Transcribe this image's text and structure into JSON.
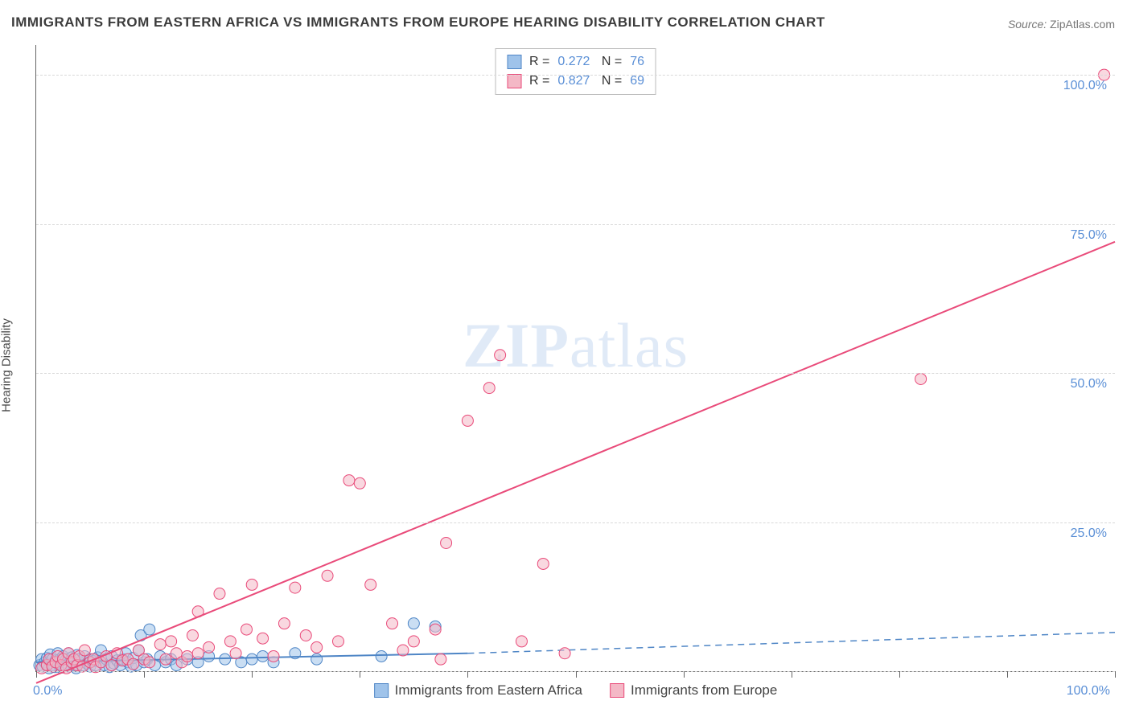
{
  "title": "IMMIGRANTS FROM EASTERN AFRICA VS IMMIGRANTS FROM EUROPE HEARING DISABILITY CORRELATION CHART",
  "source": {
    "label": "Source:",
    "value": "ZipAtlas.com"
  },
  "yaxis_label": "Hearing Disability",
  "watermark": {
    "bold": "ZIP",
    "rest": "atlas"
  },
  "chart": {
    "type": "scatter",
    "xlim": [
      0,
      100
    ],
    "ylim": [
      0,
      105
    ],
    "x_ticks": [
      0,
      10,
      20,
      30,
      40,
      50,
      60,
      70,
      80,
      90,
      100
    ],
    "y_gridlines": [
      0,
      25,
      50,
      75,
      100
    ],
    "y_tick_labels": [
      "25.0%",
      "50.0%",
      "75.0%",
      "100.0%"
    ],
    "y_tick_values": [
      25,
      50,
      75,
      100
    ],
    "x_origin_label": "0.0%",
    "x_end_label": "100.0%",
    "background_color": "#ffffff",
    "grid_color": "#d9d9d9",
    "axis_color": "#666666",
    "label_color": "#5a8fd6",
    "label_fontsize": 16,
    "title_fontsize": 17,
    "title_color": "#3c3c3c",
    "series": [
      {
        "name": "Immigrants from Eastern Africa",
        "color_fill": "#9fc3ea",
        "color_stroke": "#4f86c6",
        "fill_opacity": 0.55,
        "marker_radius": 7,
        "R": "0.272",
        "N": "76",
        "trend": {
          "solid_to_x": 40,
          "y_at_0": 1.5,
          "y_at_40": 3.0,
          "y_at_100": 6.5,
          "stroke_width": 2
        },
        "points": [
          [
            0.3,
            1.0
          ],
          [
            0.5,
            2.0
          ],
          [
            0.6,
            0.8
          ],
          [
            0.8,
            1.5
          ],
          [
            1.0,
            1.2
          ],
          [
            1.0,
            2.2
          ],
          [
            1.2,
            0.5
          ],
          [
            1.3,
            2.8
          ],
          [
            1.5,
            1.0
          ],
          [
            1.5,
            2.0
          ],
          [
            1.7,
            0.7
          ],
          [
            1.8,
            1.8
          ],
          [
            2.0,
            1.3
          ],
          [
            2.0,
            3.0
          ],
          [
            2.2,
            2.0
          ],
          [
            2.3,
            0.6
          ],
          [
            2.5,
            1.5
          ],
          [
            2.5,
            2.5
          ],
          [
            2.7,
            1.0
          ],
          [
            2.8,
            2.0
          ],
          [
            3.0,
            0.8
          ],
          [
            3.0,
            3.0
          ],
          [
            3.2,
            1.7
          ],
          [
            3.3,
            2.3
          ],
          [
            3.5,
            1.0
          ],
          [
            3.5,
            2.0
          ],
          [
            3.7,
            0.5
          ],
          [
            3.8,
            2.7
          ],
          [
            4.0,
            1.5
          ],
          [
            4.0,
            2.0
          ],
          [
            4.3,
            1.0
          ],
          [
            4.5,
            2.5
          ],
          [
            4.7,
            1.3
          ],
          [
            5.0,
            2.0
          ],
          [
            5.0,
            0.8
          ],
          [
            5.3,
            1.7
          ],
          [
            5.5,
            1.0
          ],
          [
            5.7,
            2.3
          ],
          [
            6.0,
            1.5
          ],
          [
            6.0,
            3.5
          ],
          [
            6.3,
            1.0
          ],
          [
            6.5,
            2.0
          ],
          [
            6.8,
            0.7
          ],
          [
            7.0,
            2.5
          ],
          [
            7.2,
            1.3
          ],
          [
            7.5,
            1.8
          ],
          [
            7.8,
            1.0
          ],
          [
            8.0,
            2.0
          ],
          [
            8.3,
            3.0
          ],
          [
            8.5,
            1.5
          ],
          [
            8.8,
            0.8
          ],
          [
            9.0,
            2.2
          ],
          [
            9.3,
            1.0
          ],
          [
            9.5,
            3.5
          ],
          [
            9.7,
            6.0
          ],
          [
            10.0,
            1.5
          ],
          [
            10.3,
            2.0
          ],
          [
            10.5,
            7.0
          ],
          [
            11.0,
            1.0
          ],
          [
            11.5,
            2.5
          ],
          [
            12.0,
            1.5
          ],
          [
            12.5,
            2.0
          ],
          [
            13.0,
            1.0
          ],
          [
            14.0,
            2.0
          ],
          [
            15.0,
            1.5
          ],
          [
            16.0,
            2.5
          ],
          [
            17.5,
            2.0
          ],
          [
            19.0,
            1.5
          ],
          [
            20.0,
            2.0
          ],
          [
            21.0,
            2.5
          ],
          [
            22.0,
            1.5
          ],
          [
            24.0,
            3.0
          ],
          [
            26.0,
            2.0
          ],
          [
            32.0,
            2.5
          ],
          [
            35.0,
            8.0
          ],
          [
            37.0,
            7.5
          ]
        ]
      },
      {
        "name": "Immigrants from Europe",
        "color_fill": "#f4b8c6",
        "color_stroke": "#e94b7a",
        "fill_opacity": 0.55,
        "marker_radius": 7,
        "R": "0.827",
        "N": "69",
        "trend": {
          "solid_to_x": 100,
          "y_at_0": -2,
          "y_at_100": 72,
          "stroke_width": 2
        },
        "points": [
          [
            0.5,
            0.5
          ],
          [
            1.0,
            1.0
          ],
          [
            1.2,
            2.0
          ],
          [
            1.5,
            0.8
          ],
          [
            1.8,
            1.5
          ],
          [
            2.0,
            2.5
          ],
          [
            2.3,
            1.0
          ],
          [
            2.5,
            2.0
          ],
          [
            2.8,
            0.5
          ],
          [
            3.0,
            3.0
          ],
          [
            3.3,
            1.5
          ],
          [
            3.5,
            2.0
          ],
          [
            3.8,
            1.0
          ],
          [
            4.0,
            2.5
          ],
          [
            4.3,
            0.8
          ],
          [
            4.5,
            3.5
          ],
          [
            5.0,
            1.5
          ],
          [
            5.3,
            2.0
          ],
          [
            5.5,
            0.7
          ],
          [
            6.0,
            1.5
          ],
          [
            6.5,
            2.5
          ],
          [
            7.0,
            1.0
          ],
          [
            7.5,
            3.0
          ],
          [
            8.0,
            1.8
          ],
          [
            8.5,
            2.0
          ],
          [
            9.0,
            1.2
          ],
          [
            9.5,
            3.5
          ],
          [
            10.0,
            2.0
          ],
          [
            10.5,
            1.5
          ],
          [
            11.5,
            4.5
          ],
          [
            12.0,
            2.0
          ],
          [
            12.5,
            5.0
          ],
          [
            13.0,
            3.0
          ],
          [
            13.5,
            1.5
          ],
          [
            14.0,
            2.5
          ],
          [
            14.5,
            6.0
          ],
          [
            15.0,
            3.0
          ],
          [
            15.0,
            10.0
          ],
          [
            16.0,
            4.0
          ],
          [
            17.0,
            13.0
          ],
          [
            18.0,
            5.0
          ],
          [
            18.5,
            3.0
          ],
          [
            19.5,
            7.0
          ],
          [
            20.0,
            14.5
          ],
          [
            21.0,
            5.5
          ],
          [
            22.0,
            2.5
          ],
          [
            23.0,
            8.0
          ],
          [
            24.0,
            14.0
          ],
          [
            25.0,
            6.0
          ],
          [
            26.0,
            4.0
          ],
          [
            27.0,
            16.0
          ],
          [
            28.0,
            5.0
          ],
          [
            29.0,
            32.0
          ],
          [
            30.0,
            31.5
          ],
          [
            31.0,
            14.5
          ],
          [
            33.0,
            8.0
          ],
          [
            34.0,
            3.5
          ],
          [
            35.0,
            5.0
          ],
          [
            37.0,
            7.0
          ],
          [
            38.0,
            21.5
          ],
          [
            40.0,
            42.0
          ],
          [
            42.0,
            47.5
          ],
          [
            43.0,
            53.0
          ],
          [
            45.0,
            5.0
          ],
          [
            47.0,
            18.0
          ],
          [
            49.0,
            3.0
          ],
          [
            82.0,
            49.0
          ],
          [
            99.0,
            100.0
          ],
          [
            37.5,
            2.0
          ]
        ]
      }
    ]
  },
  "legend_bottom": {
    "items": [
      {
        "label": "Immigrants from Eastern Africa",
        "fill": "#9fc3ea",
        "stroke": "#4f86c6"
      },
      {
        "label": "Immigrants from Europe",
        "fill": "#f4b8c6",
        "stroke": "#e94b7a"
      }
    ]
  }
}
